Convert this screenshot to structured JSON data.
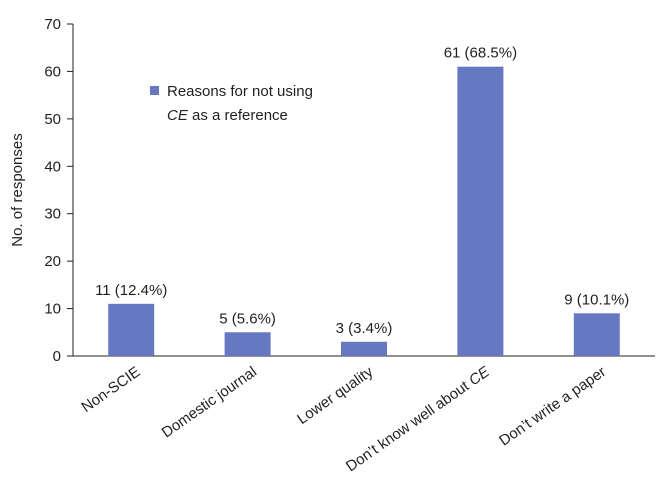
{
  "chart_data": {
    "type": "bar",
    "categories": [
      "Non-SCIE",
      "Domestic journal",
      "Lower quality",
      "Don’t know well about CE",
      "Don’t write a paper"
    ],
    "values": [
      11,
      5,
      3,
      61,
      9
    ],
    "data_labels": [
      "11 (12.4%)",
      "5 (5.6%)",
      "3 (3.4%)",
      "61 (68.5%)",
      "9 (10.1%)"
    ],
    "series": [
      {
        "name": "Reasons for not using CE as a reference",
        "values": [
          11,
          5,
          3,
          61,
          9
        ]
      }
    ],
    "legend": {
      "line1": "Reasons for not using",
      "line2_italic": "CE",
      "line2_rest": " as a reference",
      "placement": "top-left"
    },
    "ylabel": "No. of responses",
    "xlabel": "",
    "ylim": [
      0,
      70
    ],
    "yticks": [
      0,
      10,
      20,
      30,
      40,
      50,
      60,
      70
    ],
    "grid": false,
    "bar_color": "#6678c1"
  }
}
